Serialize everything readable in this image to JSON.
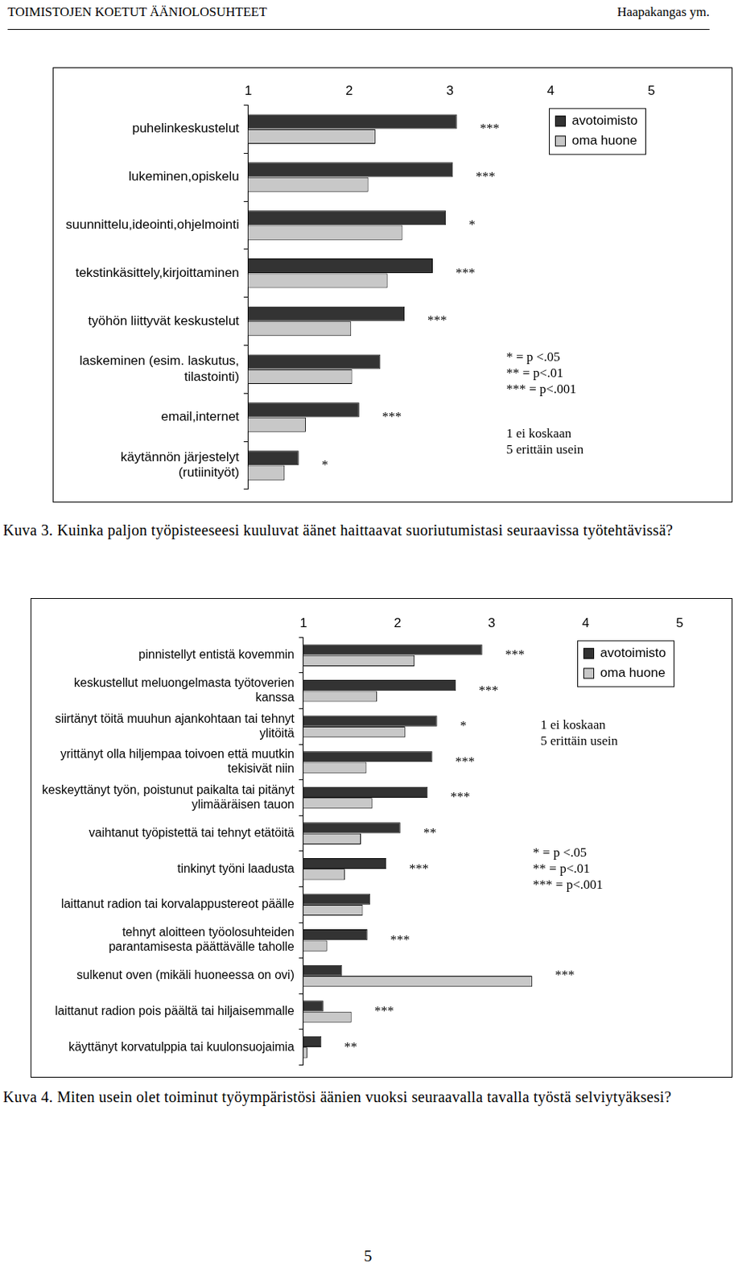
{
  "header": {
    "left": "TOIMISTOJEN KOETUT ÄÄNIOLOSUHTEET",
    "right": "Haapakangas ym."
  },
  "chart_data": [
    {
      "type": "bar",
      "orientation": "horizontal",
      "categories": [
        "puhelinkeskustelut",
        "lukeminen,opiskelu",
        "suunnittelu,ideointi,ohjelmointi",
        "tekstinkäsittely,kirjoittaminen",
        "työhön liittyvät keskustelut",
        [
          "laskeminen (esim. laskutus,",
          "tilastointi)"
        ],
        "email,internet",
        [
          "käytännön järjestelyt",
          "(rutiinityöt)"
        ]
      ],
      "series": [
        {
          "name": "avotoimisto",
          "color": "#333333",
          "values": [
            3.07,
            3.03,
            2.96,
            2.83,
            2.55,
            2.31,
            2.1,
            1.5
          ]
        },
        {
          "name": "oma huone",
          "color": "#c8c8c8",
          "values": [
            2.26,
            2.19,
            2.53,
            2.38,
            2.02,
            2.03,
            1.57,
            1.36
          ]
        }
      ],
      "significance": [
        "***",
        "***",
        "*",
        "***",
        "***",
        null,
        "***",
        "*"
      ],
      "annotations": [
        "* = p <.05",
        "** = p<.01",
        "*** = p<.001"
      ],
      "scale_labels": [
        "1 ei koskaan",
        "5 erittäin usein"
      ],
      "xlim": [
        1,
        5
      ],
      "xticks": [
        1,
        2,
        3,
        4,
        5
      ],
      "grid": false,
      "legend": "upper right",
      "caption": "Kuva 3. Kuinka paljon työpisteeseesi kuuluvat äänet haittaavat suoriutumistasi seuraavissa työtehtävissä?"
    },
    {
      "type": "bar",
      "orientation": "horizontal",
      "categories": [
        "pinnistellyt entistä kovemmin",
        [
          "keskustellut meluongelmasta työtoverien",
          "kanssa"
        ],
        [
          "siirtänyt töitä muuhun ajankohtaan tai tehnyt",
          "ylitöitä"
        ],
        [
          "yrittänyt olla hiljempaa toivoen että muutkin",
          "tekisivät niin"
        ],
        [
          "keskeyttänyt työn, poistunut paikalta tai pitänyt",
          "ylimääräisen tauon"
        ],
        "vaihtanut työpistettä tai tehnyt etätöitä",
        "tinkinyt työni laadusta",
        "laittanut radion tai korvalappustereot päälle",
        [
          "tehnyt aloitteen työolosuhteiden",
          "parantamisesta päättävälle taholle"
        ],
        "sulkenut oven (mikäli huoneessa on ovi)",
        "laittanut radion pois päältä tai hiljaisemmalle",
        "käyttänyt korvatulppia tai kuulonsuojaimia"
      ],
      "series": [
        {
          "name": "avotoimisto",
          "color": "#333333",
          "values": [
            2.9,
            2.62,
            2.42,
            2.37,
            2.32,
            2.03,
            1.88,
            1.71,
            1.68,
            1.41,
            1.21,
            1.19
          ]
        },
        {
          "name": "oma huone",
          "color": "#c8c8c8",
          "values": [
            2.18,
            1.78,
            2.08,
            1.67,
            1.73,
            1.61,
            1.44,
            1.63,
            1.25,
            3.43,
            1.51,
            1.04
          ]
        }
      ],
      "significance": [
        "***",
        "***",
        "*",
        "***",
        "***",
        "**",
        "***",
        null,
        "***",
        "***",
        "***",
        "**"
      ],
      "annotations": [
        "* = p <.05",
        "** = p<.01",
        "*** = p<.001"
      ],
      "scale_labels": [
        "1 ei koskaan",
        "5 erittäin usein"
      ],
      "xlim": [
        1,
        5
      ],
      "xticks": [
        1,
        2,
        3,
        4,
        5
      ],
      "grid": false,
      "legend": "upper right",
      "caption": "Kuva 4. Miten usein olet toiminut työympäristösi äänien vuoksi seuraavalla tavalla työstä selviytyäksesi?"
    }
  ],
  "page_number": "5"
}
